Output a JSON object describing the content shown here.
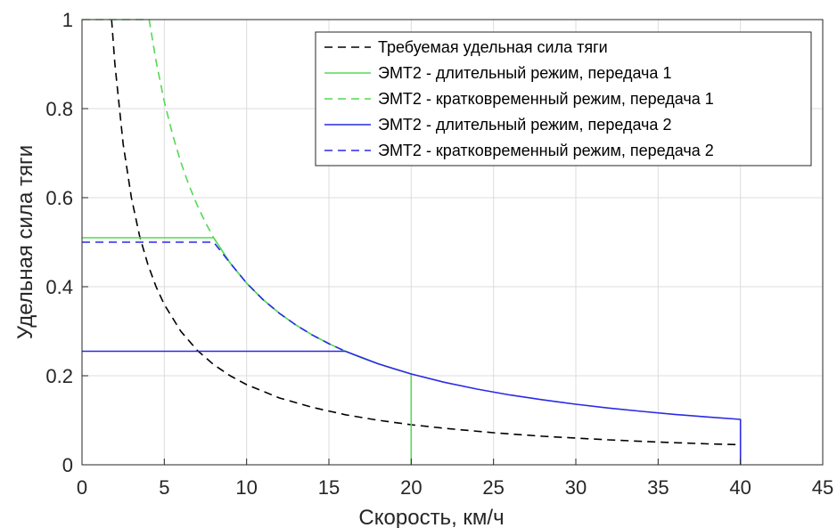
{
  "chart_data": {
    "type": "line",
    "title": "",
    "xlabel": "Скорость, км/ч",
    "ylabel": "Удельная сила тяги",
    "xlim": [
      0,
      45
    ],
    "ylim": [
      0,
      1
    ],
    "xticks": [
      0,
      5,
      10,
      15,
      20,
      25,
      30,
      35,
      40,
      45
    ],
    "yticks": [
      0,
      0.2,
      0.4,
      0.6,
      0.8,
      1
    ],
    "grid": true,
    "legend_position": "top-right",
    "series": [
      {
        "name": "Требуемая удельная сила тяги",
        "color": "#000000",
        "dash": "dashed",
        "x": [
          1.8,
          2,
          2.5,
          3,
          3.5,
          4,
          4.5,
          5,
          6,
          7,
          8,
          9,
          10,
          12,
          14,
          16,
          18,
          20,
          22,
          25,
          28,
          30,
          32,
          35,
          38,
          40
        ],
        "y": [
          1.0,
          0.9,
          0.72,
          0.6,
          0.514,
          0.45,
          0.4,
          0.36,
          0.3,
          0.257,
          0.225,
          0.2,
          0.18,
          0.15,
          0.129,
          0.1125,
          0.1,
          0.09,
          0.082,
          0.072,
          0.064,
          0.06,
          0.056,
          0.051,
          0.047,
          0.045
        ]
      },
      {
        "name": "ЭМТ2 - длительный режим, передача 1",
        "color": "#55d955",
        "dash": "solid",
        "x": [
          0,
          8,
          9,
          10,
          11,
          12,
          13,
          14,
          15,
          16,
          17,
          18,
          19,
          20,
          20
        ],
        "y": [
          0.51,
          0.51,
          0.4533,
          0.408,
          0.3709,
          0.34,
          0.3138,
          0.2914,
          0.272,
          0.255,
          0.24,
          0.2267,
          0.2147,
          0.204,
          0
        ]
      },
      {
        "name": "ЭМТ2 - кратковременный режим, передача 1",
        "color": "#55d955",
        "dash": "dashed",
        "x": [
          0,
          4.08,
          4.5,
          5,
          5.5,
          6,
          6.5,
          7,
          7.5,
          8,
          9,
          10,
          11,
          12,
          13,
          14,
          15
        ],
        "y": [
          1.0,
          1.0,
          0.9067,
          0.816,
          0.7418,
          0.68,
          0.6277,
          0.5829,
          0.544,
          0.51,
          0.4533,
          0.408,
          0.3709,
          0.34,
          0.3138,
          0.2914,
          0.272
        ]
      },
      {
        "name": "ЭМТ2 - длительный режим, передача 2",
        "color": "#2a2ae6",
        "dash": "solid",
        "x": [
          0,
          16,
          18,
          20,
          22,
          24,
          26,
          28,
          30,
          32,
          34,
          36,
          38,
          40,
          40
        ],
        "y": [
          0.255,
          0.255,
          0.2267,
          0.204,
          0.1855,
          0.17,
          0.1569,
          0.1457,
          0.136,
          0.1275,
          0.12,
          0.1133,
          0.1074,
          0.102,
          0
        ]
      },
      {
        "name": "ЭМТ2 - кратковременный режим, передача 2",
        "color": "#2a2ae6",
        "dash": "dashed",
        "x": [
          0,
          8,
          9,
          10,
          11,
          12,
          13,
          14,
          15,
          16
        ],
        "y": [
          0.5,
          0.5,
          0.4533,
          0.408,
          0.3709,
          0.34,
          0.3138,
          0.2914,
          0.272,
          0.255
        ]
      }
    ]
  }
}
